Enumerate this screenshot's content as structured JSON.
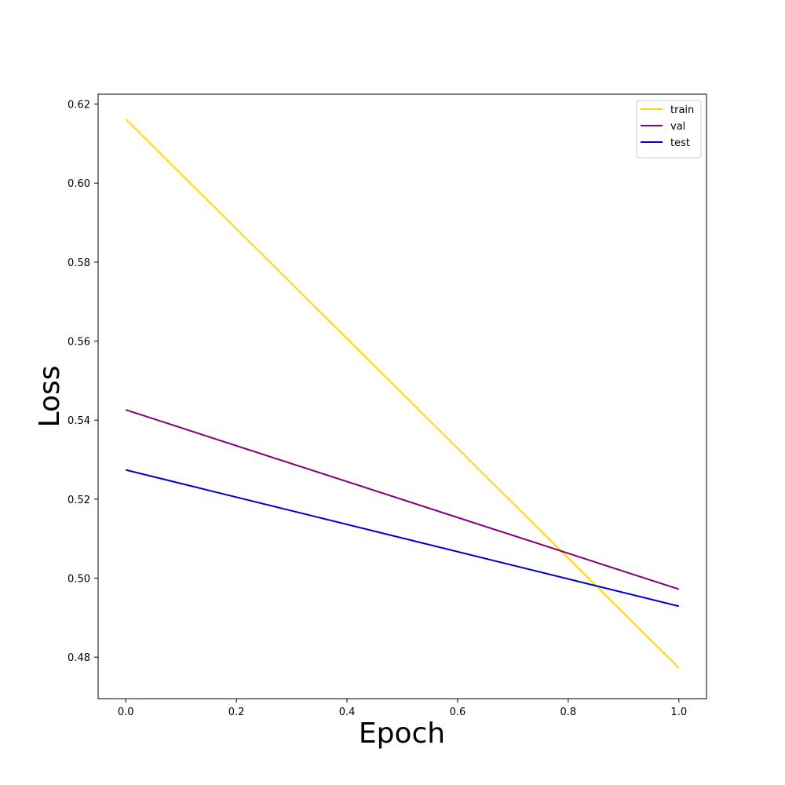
{
  "chart_data": {
    "type": "line",
    "title": "",
    "xlabel": "Epoch",
    "ylabel": "Loss",
    "x": [
      0.0,
      1.0
    ],
    "xlim": [
      -0.05,
      1.05
    ],
    "ylim": [
      0.4695,
      0.6225
    ],
    "xticks": [
      0.0,
      0.2,
      0.4,
      0.6,
      0.8,
      1.0
    ],
    "xtick_labels": [
      "0.0",
      "0.2",
      "0.4",
      "0.6",
      "0.8",
      "1.0"
    ],
    "yticks": [
      0.48,
      0.5,
      0.52,
      0.54,
      0.56,
      0.58,
      0.6,
      0.62
    ],
    "ytick_labels": [
      "0.48",
      "0.50",
      "0.52",
      "0.54",
      "0.56",
      "0.58",
      "0.60",
      "0.62"
    ],
    "grid": false,
    "legend_position": "top-right",
    "series": [
      {
        "name": "train",
        "color": "#FFD700",
        "values": [
          0.6162,
          0.4773
        ]
      },
      {
        "name": "val",
        "color": "#800080",
        "values": [
          0.5426,
          0.4972
        ]
      },
      {
        "name": "test",
        "color": "#0000CD",
        "values": [
          0.5274,
          0.4929
        ]
      }
    ]
  }
}
